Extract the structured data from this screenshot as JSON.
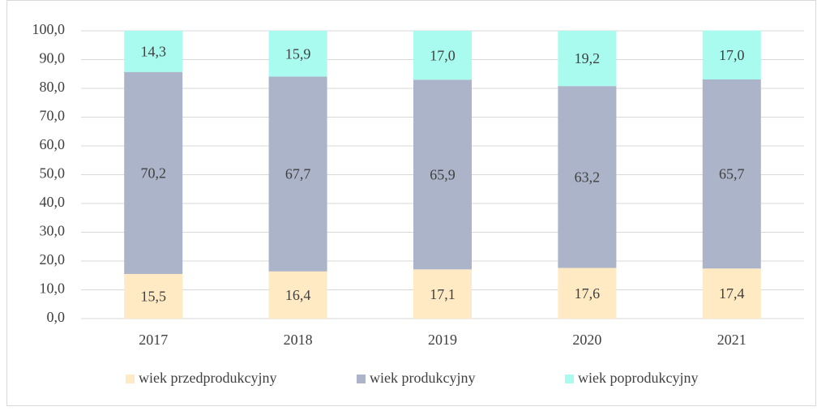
{
  "chart_data": {
    "type": "stacked_bar",
    "categories": [
      "2017",
      "2018",
      "2019",
      "2020",
      "2021"
    ],
    "series": [
      {
        "name": "wiek przedprodukcyjny",
        "color": "#ffeac4",
        "values": [
          15.5,
          16.4,
          17.1,
          17.6,
          17.4
        ],
        "value_labels": [
          "15,5",
          "16,4",
          "17,1",
          "17,6",
          "17,4"
        ]
      },
      {
        "name": "wiek produkcyjny",
        "color": "#abb4c8",
        "values": [
          70.2,
          67.7,
          65.9,
          63.2,
          65.7
        ],
        "value_labels": [
          "70,2",
          "67,7",
          "65,9",
          "63,2",
          "65,7"
        ]
      },
      {
        "name": "wiek poprodukcyjny",
        "color": "#a8fbee",
        "values": [
          14.3,
          15.9,
          17.0,
          19.2,
          17.0
        ],
        "value_labels": [
          "14,3",
          "15,9",
          "17,0",
          "19,2",
          "17,0"
        ]
      }
    ],
    "ylim": [
      0,
      100
    ],
    "yticks": [
      {
        "value": 0,
        "label": "0,0"
      },
      {
        "value": 10,
        "label": "10,0"
      },
      {
        "value": 20,
        "label": "20,0"
      },
      {
        "value": 30,
        "label": "30,0"
      },
      {
        "value": 40,
        "label": "40,0"
      },
      {
        "value": 50,
        "label": "50,0"
      },
      {
        "value": 60,
        "label": "60,0"
      },
      {
        "value": 70,
        "label": "70,0"
      },
      {
        "value": 80,
        "label": "80,0"
      },
      {
        "value": 90,
        "label": "90,0"
      },
      {
        "value": 100,
        "label": "100,0"
      }
    ],
    "grid": true,
    "legend": "bottom"
  }
}
